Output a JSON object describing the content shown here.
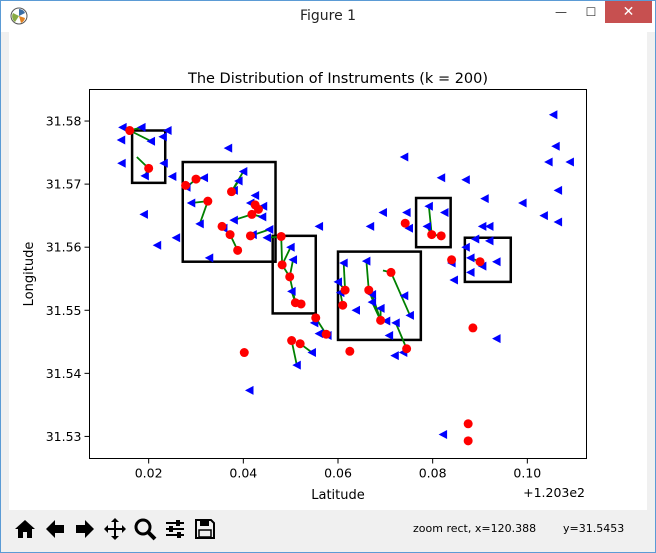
{
  "window": {
    "title": "Figure 1",
    "minimize_glyph": "—",
    "maximize_glyph": "☐",
    "close_glyph": "✕"
  },
  "toolbar": {
    "buttons": [
      {
        "name": "home-icon"
      },
      {
        "name": "back-arrow-icon"
      },
      {
        "name": "forward-arrow-icon"
      },
      {
        "name": "pan-move-icon"
      },
      {
        "name": "zoom-magnifier-icon"
      },
      {
        "name": "configure-subplots-icon"
      },
      {
        "name": "save-floppy-icon"
      }
    ],
    "status_left": "zoom rect, x=120.388",
    "status_right": "y=31.5453"
  },
  "chart_data": {
    "type": "scatter",
    "title": "The Distribution of Instruments (k = 200)",
    "xlabel": "Latitude",
    "ylabel": "Longitude",
    "x_offset_label": "+1.203e2",
    "xlim": [
      0.0075,
      0.1125
    ],
    "ylim": [
      31.5265,
      31.585
    ],
    "xticks": [
      0.02,
      0.04,
      0.06,
      0.08,
      0.1
    ],
    "xtick_labels": [
      "0.02",
      "0.04",
      "0.06",
      "0.08",
      "0.10"
    ],
    "yticks": [
      31.53,
      31.54,
      31.55,
      31.56,
      31.57,
      31.58
    ],
    "ytick_labels": [
      "31.53",
      "31.54",
      "31.55",
      "31.56",
      "31.57",
      "31.58"
    ],
    "colors": {
      "instrument": "#0000ff",
      "center": "#ff0000",
      "link": "#008000",
      "box": "#000000"
    },
    "series": [
      {
        "name": "",
        "marker": "triangle-left",
        "color": "#0000ff",
        "points": [
          [
            0.0145,
            31.579
          ],
          [
            0.0185,
            31.579
          ],
          [
            0.0142,
            31.577
          ],
          [
            0.0205,
            31.5768
          ],
          [
            0.023,
            31.5775
          ],
          [
            0.024,
            31.5785
          ],
          [
            0.0143,
            31.5733
          ],
          [
            0.0232,
            31.5733
          ],
          [
            0.025,
            31.5712
          ],
          [
            0.0192,
            31.5713
          ],
          [
            0.0368,
            31.5757
          ],
          [
            0.0317,
            31.571
          ],
          [
            0.039,
            31.5705
          ],
          [
            0.04,
            31.572
          ],
          [
            0.028,
            31.5695
          ],
          [
            0.038,
            31.569
          ],
          [
            0.0425,
            31.5682
          ],
          [
            0.029,
            31.567
          ],
          [
            0.0415,
            31.567
          ],
          [
            0.0442,
            31.5665
          ],
          [
            0.044,
            31.5648
          ],
          [
            0.019,
            31.5652
          ],
          [
            0.038,
            31.5643
          ],
          [
            0.0308,
            31.5637
          ],
          [
            0.0358,
            31.563
          ],
          [
            0.0455,
            31.5628
          ],
          [
            0.0258,
            31.5615
          ],
          [
            0.0218,
            31.5603
          ],
          [
            0.0328,
            31.5583
          ],
          [
            0.042,
            31.562
          ],
          [
            0.045,
            31.5615
          ],
          [
            0.05,
            31.56
          ],
          [
            0.0505,
            31.558
          ],
          [
            0.056,
            31.5633
          ],
          [
            0.0502,
            31.553
          ],
          [
            0.055,
            31.548
          ],
          [
            0.056,
            31.5463
          ],
          [
            0.0578,
            31.546
          ],
          [
            0.0545,
            31.5433
          ],
          [
            0.0513,
            31.5413
          ],
          [
            0.0695,
            31.5655
          ],
          [
            0.0668,
            31.5633
          ],
          [
            0.0745,
            31.5655
          ],
          [
            0.075,
            31.563
          ],
          [
            0.074,
            31.5743
          ],
          [
            0.0818,
            31.571
          ],
          [
            0.087,
            31.5707
          ],
          [
            0.091,
            31.5677
          ],
          [
            0.0792,
            31.5665
          ],
          [
            0.0788,
            31.5633
          ],
          [
            0.0825,
            31.5655
          ],
          [
            0.0905,
            31.5633
          ],
          [
            0.092,
            31.5633
          ],
          [
            0.089,
            31.5613
          ],
          [
            0.092,
            31.561
          ],
          [
            0.087,
            31.56
          ],
          [
            0.084,
            31.5575
          ],
          [
            0.088,
            31.5583
          ],
          [
            0.0935,
            31.5577
          ],
          [
            0.0905,
            31.557
          ],
          [
            0.088,
            31.556
          ],
          [
            0.0845,
            31.5548
          ],
          [
            0.066,
            31.5578
          ],
          [
            0.0612,
            31.5575
          ],
          [
            0.06,
            31.5545
          ],
          [
            0.0605,
            31.5528
          ],
          [
            0.0638,
            31.55
          ],
          [
            0.0672,
            31.5525
          ],
          [
            0.0672,
            31.5513
          ],
          [
            0.069,
            31.5503
          ],
          [
            0.0702,
            31.5483
          ],
          [
            0.0722,
            31.548
          ],
          [
            0.0708,
            31.546
          ],
          [
            0.0752,
            31.5492
          ],
          [
            0.074,
            31.5523
          ],
          [
            0.0738,
            31.5433
          ],
          [
            0.072,
            31.5428
          ],
          [
            0.0935,
            31.5455
          ],
          [
            0.0413,
            31.5373
          ],
          [
            0.0822,
            31.5303
          ],
          [
            0.1055,
            31.581
          ],
          [
            0.106,
            31.576
          ],
          [
            0.1045,
            31.5735
          ],
          [
            0.109,
            31.5735
          ],
          [
            0.1065,
            31.569
          ],
          [
            0.099,
            31.567
          ],
          [
            0.1035,
            31.565
          ],
          [
            0.1065,
            31.564
          ]
        ]
      },
      {
        "name": "",
        "marker": "circle",
        "color": "#ff0000",
        "points": [
          [
            0.016,
            31.5785
          ],
          [
            0.02,
            31.5725
          ],
          [
            0.03,
            31.5708
          ],
          [
            0.0278,
            31.5698
          ],
          [
            0.0375,
            31.5688
          ],
          [
            0.0425,
            31.5667
          ],
          [
            0.0432,
            31.566
          ],
          [
            0.0325,
            31.5673
          ],
          [
            0.0355,
            31.5633
          ],
          [
            0.0418,
            31.5652
          ],
          [
            0.0372,
            31.562
          ],
          [
            0.0388,
            31.5595
          ],
          [
            0.0415,
            31.5618
          ],
          [
            0.048,
            31.5617
          ],
          [
            0.0482,
            31.5572
          ],
          [
            0.0498,
            31.5553
          ],
          [
            0.051,
            31.5512
          ],
          [
            0.0522,
            31.551
          ],
          [
            0.0553,
            31.5488
          ],
          [
            0.0575,
            31.5462
          ],
          [
            0.0502,
            31.5452
          ],
          [
            0.052,
            31.5447
          ],
          [
            0.0625,
            31.5435
          ],
          [
            0.0402,
            31.5433
          ],
          [
            0.0742,
            31.5638
          ],
          [
            0.0798,
            31.562
          ],
          [
            0.0818,
            31.5618
          ],
          [
            0.084,
            31.558
          ],
          [
            0.09,
            31.5577
          ],
          [
            0.0885,
            31.5472
          ],
          [
            0.0615,
            31.5532
          ],
          [
            0.061,
            31.5508
          ],
          [
            0.0665,
            31.5532
          ],
          [
            0.0712,
            31.556
          ],
          [
            0.069,
            31.5484
          ],
          [
            0.0745,
            31.5439
          ],
          [
            0.0875,
            31.532
          ],
          [
            0.0875,
            31.5293
          ]
        ]
      }
    ],
    "links": [
      [
        [
          0.0145,
          31.579
        ],
        [
          0.016,
          31.5785
        ]
      ],
      [
        [
          0.0185,
          31.579
        ],
        [
          0.016,
          31.5785
        ]
      ],
      [
        [
          0.0205,
          31.5768
        ],
        [
          0.016,
          31.5785
        ]
      ],
      [
        [
          0.0192,
          31.5713
        ],
        [
          0.02,
          31.5725
        ]
      ],
      [
        [
          0.0175,
          31.5743
        ],
        [
          0.02,
          31.5725
        ]
      ],
      [
        [
          0.0317,
          31.571
        ],
        [
          0.03,
          31.5708
        ]
      ],
      [
        [
          0.028,
          31.5695
        ],
        [
          0.03,
          31.5708
        ]
      ],
      [
        [
          0.029,
          31.567
        ],
        [
          0.0325,
          31.5673
        ]
      ],
      [
        [
          0.0368,
          31.569
        ],
        [
          0.0375,
          31.5688
        ]
      ],
      [
        [
          0.039,
          31.5705
        ],
        [
          0.0375,
          31.5688
        ]
      ],
      [
        [
          0.04,
          31.572
        ],
        [
          0.0375,
          31.5688
        ]
      ],
      [
        [
          0.0415,
          31.567
        ],
        [
          0.0425,
          31.5667
        ]
      ],
      [
        [
          0.0442,
          31.5665
        ],
        [
          0.0432,
          31.566
        ]
      ],
      [
        [
          0.044,
          31.5648
        ],
        [
          0.0418,
          31.5652
        ]
      ],
      [
        [
          0.038,
          31.5643
        ],
        [
          0.0418,
          31.5652
        ]
      ],
      [
        [
          0.0308,
          31.5637
        ],
        [
          0.0325,
          31.5673
        ]
      ],
      [
        [
          0.0358,
          31.563
        ],
        [
          0.0355,
          31.5633
        ]
      ],
      [
        [
          0.0355,
          31.5633
        ],
        [
          0.0372,
          31.562
        ]
      ],
      [
        [
          0.0372,
          31.562
        ],
        [
          0.0388,
          31.5595
        ]
      ],
      [
        [
          0.0455,
          31.5628
        ],
        [
          0.0415,
          31.5618
        ]
      ],
      [
        [
          0.042,
          31.562
        ],
        [
          0.0415,
          31.5618
        ]
      ],
      [
        [
          0.045,
          31.5615
        ],
        [
          0.048,
          31.5617
        ]
      ],
      [
        [
          0.048,
          31.5617
        ],
        [
          0.0482,
          31.5572
        ]
      ],
      [
        [
          0.05,
          31.56
        ],
        [
          0.0482,
          31.5572
        ]
      ],
      [
        [
          0.0482,
          31.5572
        ],
        [
          0.0498,
          31.5553
        ]
      ],
      [
        [
          0.0505,
          31.558
        ],
        [
          0.0498,
          31.5553
        ]
      ],
      [
        [
          0.0498,
          31.5553
        ],
        [
          0.051,
          31.5512
        ]
      ],
      [
        [
          0.0502,
          31.553
        ],
        [
          0.051,
          31.5512
        ]
      ],
      [
        [
          0.051,
          31.5512
        ],
        [
          0.0522,
          31.551
        ]
      ],
      [
        [
          0.055,
          31.548
        ],
        [
          0.0553,
          31.5488
        ]
      ],
      [
        [
          0.056,
          31.5463
        ],
        [
          0.0575,
          31.5462
        ]
      ],
      [
        [
          0.0553,
          31.5488
        ],
        [
          0.0575,
          31.5462
        ]
      ],
      [
        [
          0.0545,
          31.5433
        ],
        [
          0.052,
          31.5447
        ]
      ],
      [
        [
          0.0513,
          31.5413
        ],
        [
          0.0502,
          31.5452
        ]
      ],
      [
        [
          0.0792,
          31.5665
        ],
        [
          0.0798,
          31.562
        ]
      ],
      [
        [
          0.0788,
          31.5633
        ],
        [
          0.0798,
          31.562
        ]
      ],
      [
        [
          0.0798,
          31.562
        ],
        [
          0.0818,
          31.5618
        ]
      ],
      [
        [
          0.088,
          31.5583
        ],
        [
          0.09,
          31.5577
        ]
      ],
      [
        [
          0.0905,
          31.557
        ],
        [
          0.09,
          31.5577
        ]
      ],
      [
        [
          0.0612,
          31.5575
        ],
        [
          0.0615,
          31.5532
        ]
      ],
      [
        [
          0.0605,
          31.5528
        ],
        [
          0.061,
          31.5508
        ]
      ],
      [
        [
          0.06,
          31.5545
        ],
        [
          0.0615,
          31.5532
        ]
      ],
      [
        [
          0.066,
          31.5578
        ],
        [
          0.0665,
          31.5532
        ]
      ],
      [
        [
          0.0672,
          31.5525
        ],
        [
          0.069,
          31.5484
        ]
      ],
      [
        [
          0.0672,
          31.5513
        ],
        [
          0.069,
          31.5484
        ]
      ],
      [
        [
          0.069,
          31.5503
        ],
        [
          0.069,
          31.5484
        ]
      ],
      [
        [
          0.0702,
          31.5483
        ],
        [
          0.069,
          31.5484
        ]
      ],
      [
        [
          0.0665,
          31.5532
        ],
        [
          0.069,
          31.5484
        ]
      ],
      [
        [
          0.0695,
          31.5563
        ],
        [
          0.0712,
          31.556
        ]
      ],
      [
        [
          0.0712,
          31.556
        ],
        [
          0.0752,
          31.5492
        ]
      ],
      [
        [
          0.0722,
          31.548
        ],
        [
          0.0745,
          31.5439
        ]
      ],
      [
        [
          0.0738,
          31.5433
        ],
        [
          0.0745,
          31.5439
        ]
      ]
    ],
    "boxes": [
      {
        "x": [
          0.0165,
          0.0235
        ],
        "y": [
          31.5702,
          31.5785
        ]
      },
      {
        "x": [
          0.0272,
          0.0468
        ],
        "y": [
          31.5577,
          31.5735
        ]
      },
      {
        "x": [
          0.0462,
          0.0553
        ],
        "y": [
          31.5495,
          31.5618
        ]
      },
      {
        "x": [
          0.06,
          0.0775
        ],
        "y": [
          31.5453,
          31.5593
        ]
      },
      {
        "x": [
          0.0765,
          0.0838
        ],
        "y": [
          31.56,
          31.5678
        ]
      },
      {
        "x": [
          0.0868,
          0.0965
        ],
        "y": [
          31.5545,
          31.5615
        ]
      }
    ]
  }
}
